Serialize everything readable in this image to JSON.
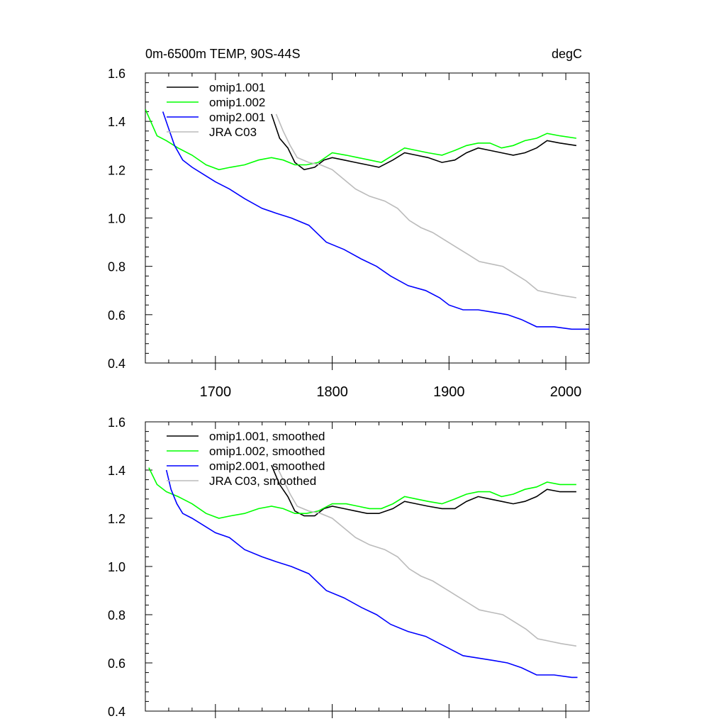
{
  "chart_data": [
    {
      "type": "line",
      "title": "0m-6500m TEMP, 90S-44S",
      "units": "degC",
      "xlabel": "",
      "ylabel": "",
      "xlim": [
        1640,
        2020
      ],
      "ylim": [
        0.4,
        1.6
      ],
      "yticks": [
        "0.4",
        "0.6",
        "0.8",
        "1.0",
        "1.2",
        "1.4",
        "1.6"
      ],
      "xticks": [
        "1700",
        "1800",
        "1900",
        "2000"
      ],
      "legend_position": "top-left",
      "series": [
        {
          "name": "omip1.001",
          "color": "#000000",
          "x": [
            1748,
            1755,
            1762,
            1768,
            1776,
            1785,
            1793,
            1800,
            1810,
            1820,
            1830,
            1840,
            1852,
            1862,
            1872,
            1882,
            1894,
            1905,
            1915,
            1925,
            1935,
            1945,
            1955,
            1965,
            1975,
            1984,
            1995,
            2009
          ],
          "y": [
            1.43,
            1.33,
            1.29,
            1.23,
            1.2,
            1.21,
            1.24,
            1.25,
            1.24,
            1.23,
            1.22,
            1.21,
            1.24,
            1.27,
            1.26,
            1.25,
            1.23,
            1.24,
            1.27,
            1.29,
            1.28,
            1.27,
            1.26,
            1.27,
            1.29,
            1.32,
            1.31,
            1.3
          ]
        },
        {
          "name": "omip1.002",
          "color": "#00ff00",
          "x": [
            1640,
            1650,
            1658,
            1668,
            1680,
            1692,
            1703,
            1713,
            1725,
            1737,
            1748,
            1758,
            1768,
            1778,
            1788,
            1800,
            1812,
            1822,
            1832,
            1842,
            1852,
            1862,
            1872,
            1882,
            1894,
            1905,
            1915,
            1925,
            1935,
            1945,
            1955,
            1965,
            1975,
            1984,
            1995,
            2009
          ],
          "y": [
            1.45,
            1.34,
            1.32,
            1.29,
            1.26,
            1.22,
            1.2,
            1.21,
            1.22,
            1.24,
            1.25,
            1.24,
            1.22,
            1.22,
            1.23,
            1.27,
            1.26,
            1.25,
            1.24,
            1.23,
            1.26,
            1.29,
            1.28,
            1.27,
            1.26,
            1.28,
            1.3,
            1.31,
            1.31,
            1.29,
            1.3,
            1.32,
            1.33,
            1.35,
            1.34,
            1.33
          ]
        },
        {
          "name": "omip2.001",
          "color": "#0000ff",
          "x": [
            1655,
            1660,
            1665,
            1672,
            1680,
            1690,
            1700,
            1712,
            1725,
            1740,
            1752,
            1765,
            1780,
            1795,
            1810,
            1825,
            1838,
            1850,
            1865,
            1880,
            1892,
            1900,
            1912,
            1925,
            1938,
            1950,
            1962,
            1975,
            1990,
            2005,
            2020
          ],
          "y": [
            1.44,
            1.37,
            1.3,
            1.24,
            1.21,
            1.18,
            1.15,
            1.12,
            1.08,
            1.04,
            1.02,
            1.0,
            0.97,
            0.9,
            0.87,
            0.83,
            0.8,
            0.76,
            0.72,
            0.7,
            0.67,
            0.64,
            0.62,
            0.62,
            0.61,
            0.6,
            0.58,
            0.55,
            0.55,
            0.54,
            0.54
          ]
        },
        {
          "name": "JRA C03",
          "color": "#bbbbbb",
          "x": [
            1752,
            1758,
            1764,
            1770,
            1780,
            1790,
            1800,
            1810,
            1820,
            1832,
            1845,
            1856,
            1866,
            1876,
            1886,
            1896,
            1906,
            1916,
            1926,
            1936,
            1946,
            1956,
            1966,
            1976,
            1986,
            1996,
            2009
          ],
          "y": [
            1.43,
            1.36,
            1.3,
            1.25,
            1.23,
            1.22,
            1.2,
            1.16,
            1.12,
            1.09,
            1.07,
            1.04,
            0.99,
            0.96,
            0.94,
            0.91,
            0.88,
            0.85,
            0.82,
            0.81,
            0.8,
            0.77,
            0.74,
            0.7,
            0.69,
            0.68,
            0.67
          ]
        }
      ]
    },
    {
      "type": "line",
      "title": "",
      "xlabel": "",
      "ylabel": "",
      "xlim": [
        1640,
        2020
      ],
      "ylim": [
        0.4,
        1.6
      ],
      "yticks": [
        "0.4",
        "0.6",
        "0.8",
        "1.0",
        "1.2",
        "1.4",
        "1.6"
      ],
      "legend_position": "top-left",
      "series": [
        {
          "name": "omip1.001, smoothed",
          "color": "#000000",
          "x": [
            1748,
            1755,
            1762,
            1768,
            1776,
            1785,
            1793,
            1800,
            1810,
            1820,
            1830,
            1840,
            1852,
            1862,
            1872,
            1882,
            1894,
            1905,
            1915,
            1925,
            1935,
            1945,
            1955,
            1965,
            1975,
            1984,
            1995,
            2009
          ],
          "y": [
            1.42,
            1.34,
            1.29,
            1.23,
            1.21,
            1.21,
            1.24,
            1.25,
            1.24,
            1.23,
            1.22,
            1.22,
            1.24,
            1.27,
            1.26,
            1.25,
            1.24,
            1.24,
            1.27,
            1.29,
            1.28,
            1.27,
            1.26,
            1.27,
            1.29,
            1.32,
            1.31,
            1.31
          ]
        },
        {
          "name": "omip1.002, smoothed",
          "color": "#00ff00",
          "x": [
            1643,
            1650,
            1658,
            1668,
            1680,
            1692,
            1703,
            1713,
            1725,
            1737,
            1748,
            1758,
            1768,
            1778,
            1788,
            1800,
            1812,
            1822,
            1832,
            1842,
            1852,
            1862,
            1872,
            1882,
            1894,
            1905,
            1915,
            1925,
            1935,
            1945,
            1955,
            1965,
            1975,
            1984,
            1995,
            2009
          ],
          "y": [
            1.41,
            1.34,
            1.31,
            1.29,
            1.26,
            1.22,
            1.2,
            1.21,
            1.22,
            1.24,
            1.25,
            1.24,
            1.22,
            1.22,
            1.23,
            1.26,
            1.26,
            1.25,
            1.24,
            1.24,
            1.26,
            1.29,
            1.28,
            1.27,
            1.26,
            1.28,
            1.3,
            1.31,
            1.31,
            1.29,
            1.3,
            1.32,
            1.33,
            1.35,
            1.34,
            1.34
          ]
        },
        {
          "name": "omip2.001, smoothed",
          "color": "#0000ff",
          "x": [
            1658,
            1662,
            1667,
            1672,
            1680,
            1690,
            1700,
            1712,
            1725,
            1740,
            1752,
            1765,
            1780,
            1795,
            1810,
            1825,
            1838,
            1850,
            1865,
            1880,
            1892,
            1900,
            1912,
            1925,
            1938,
            1950,
            1962,
            1975,
            1990,
            2005,
            2010
          ],
          "y": [
            1.4,
            1.32,
            1.26,
            1.22,
            1.2,
            1.17,
            1.14,
            1.12,
            1.07,
            1.04,
            1.02,
            1.0,
            0.97,
            0.9,
            0.87,
            0.83,
            0.8,
            0.76,
            0.73,
            0.71,
            0.68,
            0.66,
            0.63,
            0.62,
            0.61,
            0.6,
            0.58,
            0.55,
            0.55,
            0.54,
            0.54
          ]
        },
        {
          "name": "JRA C03, smoothed",
          "color": "#bbbbbb",
          "x": [
            1752,
            1758,
            1764,
            1770,
            1780,
            1790,
            1800,
            1810,
            1820,
            1832,
            1845,
            1856,
            1866,
            1876,
            1886,
            1896,
            1906,
            1916,
            1926,
            1936,
            1946,
            1956,
            1966,
            1976,
            1986,
            1996,
            2009
          ],
          "y": [
            1.42,
            1.36,
            1.3,
            1.25,
            1.23,
            1.22,
            1.2,
            1.16,
            1.12,
            1.09,
            1.07,
            1.04,
            0.99,
            0.96,
            0.94,
            0.91,
            0.88,
            0.85,
            0.82,
            0.81,
            0.8,
            0.77,
            0.74,
            0.7,
            0.69,
            0.68,
            0.67
          ]
        }
      ]
    }
  ]
}
